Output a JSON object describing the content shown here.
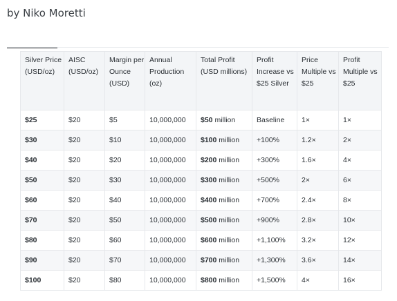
{
  "byline": "by Niko Moretti",
  "table": {
    "headers": [
      "Silver Price (USD/oz)",
      "AISC (USD/oz)",
      "Margin per Ounce (USD)",
      "Annual Production (oz)",
      "Total Profit (USD millions)",
      "Profit Increase vs $25 Silver",
      "Price Multiple vs $25",
      "Profit Multiple vs $25"
    ],
    "rows": [
      [
        "$25",
        "$20",
        "$5",
        "10,000,000",
        "$50 million",
        "Baseline",
        "1×",
        "1×"
      ],
      [
        "$30",
        "$20",
        "$10",
        "10,000,000",
        "$100 million",
        "+100%",
        "1.2×",
        "2×"
      ],
      [
        "$40",
        "$20",
        "$20",
        "10,000,000",
        "$200 million",
        "+300%",
        "1.6×",
        "4×"
      ],
      [
        "$50",
        "$20",
        "$30",
        "10,000,000",
        "$300 million",
        "+500%",
        "2×",
        "6×"
      ],
      [
        "$60",
        "$20",
        "$40",
        "10,000,000",
        "$400 million",
        "+700%",
        "2.4×",
        "8×"
      ],
      [
        "$70",
        "$20",
        "$50",
        "10,000,000",
        "$500 million",
        "+900%",
        "2.8×",
        "10×"
      ],
      [
        "$80",
        "$20",
        "$60",
        "10,000,000",
        "$600 million",
        "+1,100%",
        "3.2×",
        "12×"
      ],
      [
        "$90",
        "$20",
        "$70",
        "10,000,000",
        "$700 million",
        "+1,300%",
        "3.6×",
        "14×"
      ],
      [
        "$100",
        "$20",
        "$80",
        "10,000,000",
        "$800 million",
        "+1,500%",
        "4×",
        "16×"
      ]
    ]
  }
}
